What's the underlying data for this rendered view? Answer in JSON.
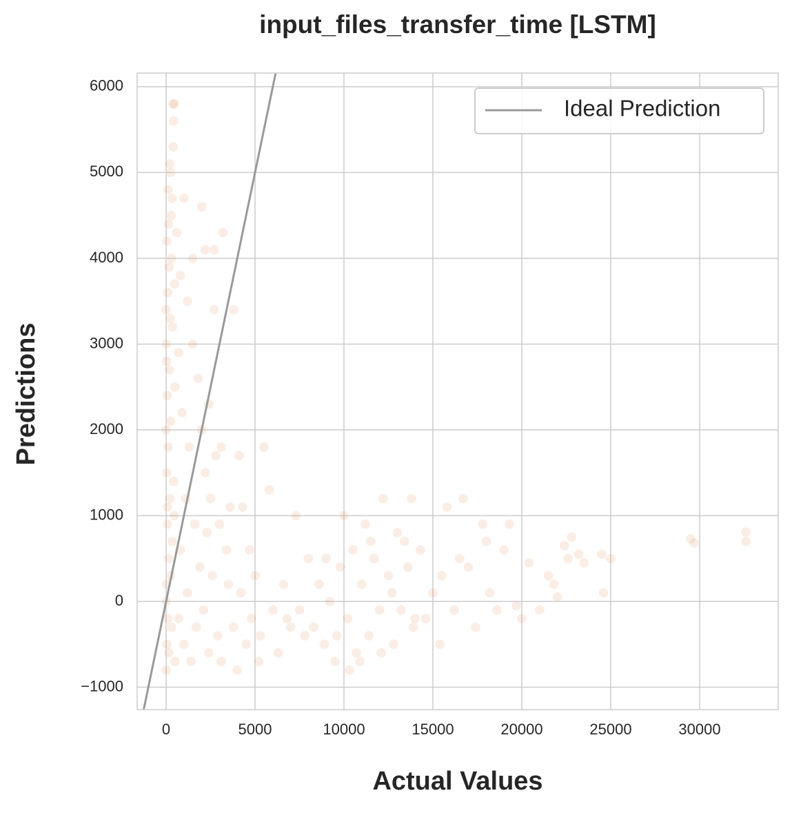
{
  "chart_data": {
    "type": "scatter",
    "title": "input_files_transfer_time [LSTM]",
    "xlabel": "Actual Values",
    "ylabel": "Predictions",
    "xlim": [
      -1628,
      34419
    ],
    "ylim": [
      -1261,
      6160
    ],
    "xticks": [
      0,
      5000,
      10000,
      15000,
      20000,
      25000,
      30000
    ],
    "yticks": [
      {
        "value": -1000,
        "label": "−1000"
      },
      0,
      1000,
      2000,
      3000,
      4000,
      5000,
      6000
    ],
    "grid": true,
    "legend": "upper right",
    "series": [
      {
        "type": "scatter",
        "color": "#dd8452",
        "x": [
          0,
          50,
          100,
          20,
          150,
          80,
          200,
          30,
          120,
          250,
          60,
          180,
          10,
          220,
          90,
          160,
          40,
          280,
          110,
          200,
          400,
          420,
          380,
          450,
          300,
          350,
          0,
          500,
          450,
          0,
          300,
          500,
          150,
          250,
          350,
          70,
          420,
          30,
          480,
          130,
          260,
          0,
          340,
          600,
          800,
          1000,
          700,
          1200,
          900,
          1500,
          1300,
          1800,
          1100,
          2000,
          1600,
          2200,
          2500,
          1900,
          2300,
          2800,
          2600,
          3000,
          700,
          1000,
          1400,
          1700,
          2100,
          2400,
          2900,
          3100,
          800,
          1200,
          2000,
          2200,
          3200,
          2700,
          3800,
          2400,
          2700,
          1500,
          3100,
          3500,
          3800,
          4000,
          4200,
          4500,
          4800,
          5000,
          5300,
          5500,
          5800,
          6000,
          6300,
          6600,
          7000,
          7300,
          7500,
          3400,
          3600,
          4100,
          4300,
          4700,
          5200,
          6800,
          7800,
          8000,
          8300,
          8600,
          8900,
          9200,
          9500,
          9800,
          10000,
          10200,
          10500,
          10700,
          11000,
          11200,
          11400,
          11700,
          12000,
          12200,
          12500,
          12800,
          13000,
          13200,
          13600,
          13900,
          9000,
          9600,
          10300,
          10900,
          11500,
          12100,
          12700,
          13400,
          14000,
          13800,
          14300,
          14600,
          15000,
          15400,
          15800,
          16200,
          16700,
          17000,
          17400,
          17800,
          18200,
          18600,
          19000,
          19300,
          19700,
          20000,
          15500,
          16500,
          18000,
          20400,
          21000,
          21500,
          21800,
          22000,
          22400,
          22600,
          22800,
          23200,
          23500,
          24500,
          24600,
          25000,
          29500,
          29700,
          32600,
          32600
        ],
        "values": [
          -800,
          -500,
          -200,
          200,
          500,
          900,
          1200,
          1500,
          1800,
          2100,
          2400,
          2700,
          3000,
          3300,
          3600,
          3900,
          4200,
          4500,
          4800,
          5100,
          5300,
          5600,
          5800,
          5800,
          4000,
          3200,
          2000,
          2500,
          1000,
          0,
          -300,
          -700,
          -600,
          300,
          700,
          1100,
          1400,
          2800,
          3700,
          4400,
          5000,
          3400,
          4700,
          4300,
          3800,
          4700,
          2900,
          3500,
          2200,
          3000,
          1800,
          2600,
          1200,
          2000,
          900,
          1500,
          1200,
          400,
          800,
          1700,
          300,
          900,
          -200,
          -500,
          -700,
          -300,
          -100,
          -600,
          -400,
          -700,
          600,
          100,
          4600,
          4100,
          4300,
          3400,
          3400,
          2300,
          4100,
          4000,
          1800,
          200,
          -300,
          -800,
          100,
          -500,
          -200,
          300,
          -400,
          1800,
          1300,
          -100,
          -600,
          200,
          -300,
          1000,
          -100,
          600,
          1100,
          1700,
          1100,
          600,
          -700,
          -200,
          -400,
          500,
          -300,
          200,
          -500,
          0,
          -700,
          400,
          1000,
          -200,
          600,
          -600,
          200,
          900,
          -400,
          500,
          -100,
          1200,
          300,
          -500,
          800,
          -100,
          400,
          -300,
          500,
          -400,
          -800,
          -700,
          700,
          -600,
          100,
          700,
          -200,
          1200,
          600,
          -200,
          100,
          -500,
          1100,
          -100,
          1200,
          400,
          -300,
          900,
          100,
          -100,
          600,
          900,
          -50,
          -200,
          300,
          500,
          700,
          450,
          -100,
          300,
          200,
          50,
          650,
          500,
          750,
          550,
          450,
          550,
          100,
          500,
          730,
          680,
          810,
          700
        ]
      },
      {
        "type": "line",
        "name": "Ideal Prediction",
        "color": "#999999",
        "x": [
          -1261,
          6160
        ],
        "values": [
          -1261,
          6160
        ]
      }
    ]
  }
}
